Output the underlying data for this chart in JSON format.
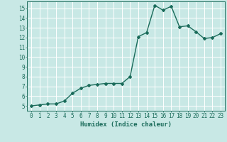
{
  "x": [
    0,
    1,
    2,
    3,
    4,
    5,
    6,
    7,
    8,
    9,
    10,
    11,
    12,
    13,
    14,
    15,
    16,
    17,
    18,
    19,
    20,
    21,
    22,
    23
  ],
  "y": [
    5.0,
    5.1,
    5.2,
    5.2,
    5.5,
    6.3,
    6.8,
    7.1,
    7.2,
    7.3,
    7.3,
    7.3,
    8.0,
    12.1,
    12.5,
    15.3,
    14.8,
    15.2,
    13.1,
    13.2,
    12.6,
    11.9,
    12.0,
    12.4
  ],
  "xlabel": "Humidex (Indice chaleur)",
  "xlim": [
    -0.5,
    23.5
  ],
  "ylim": [
    4.5,
    15.7
  ],
  "yticks": [
    5,
    6,
    7,
    8,
    9,
    10,
    11,
    12,
    13,
    14,
    15
  ],
  "xticks": [
    0,
    1,
    2,
    3,
    4,
    5,
    6,
    7,
    8,
    9,
    10,
    11,
    12,
    13,
    14,
    15,
    16,
    17,
    18,
    19,
    20,
    21,
    22,
    23
  ],
  "line_color": "#1a6b5a",
  "bg_color": "#c8e8e5",
  "grid_color": "#ffffff",
  "axes_color": "#1a6b5a",
  "tick_label_color": "#1a6b5a",
  "xlabel_color": "#1a6b5a",
  "marker": "D",
  "marker_size": 2.0,
  "line_width": 1.0,
  "xlabel_fontsize": 6.5,
  "tick_fontsize": 5.5
}
